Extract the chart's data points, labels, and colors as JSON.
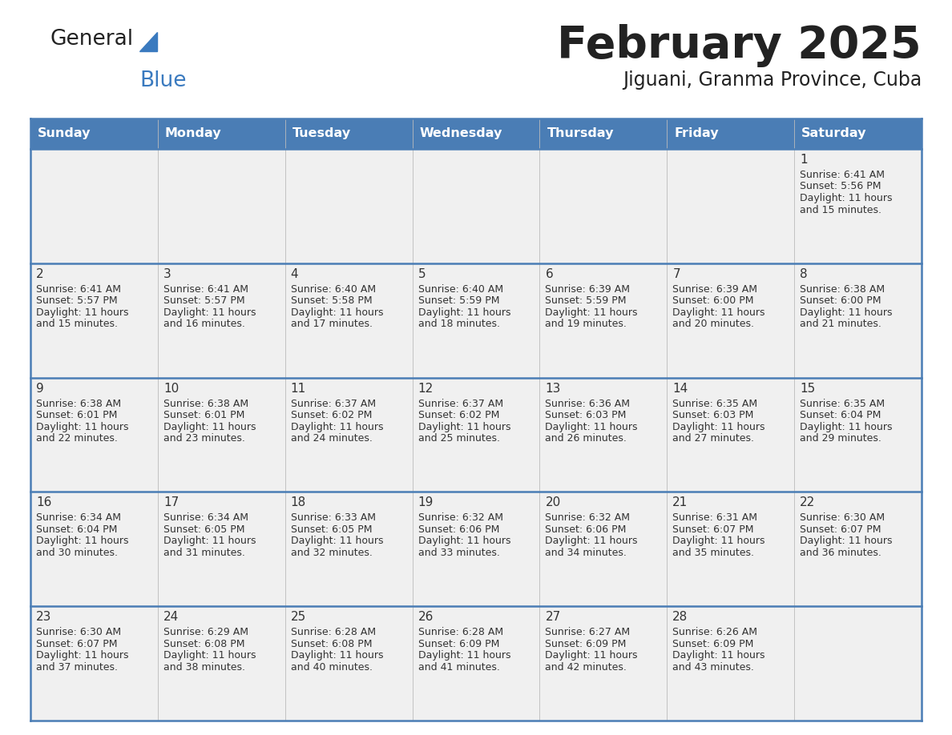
{
  "title": "February 2025",
  "subtitle": "Jiguani, Granma Province, Cuba",
  "days_of_week": [
    "Sunday",
    "Monday",
    "Tuesday",
    "Wednesday",
    "Thursday",
    "Friday",
    "Saturday"
  ],
  "header_bg": "#4A7DB5",
  "header_text": "#ffffff",
  "row_bg_light": "#f0f0f0",
  "row_bg_white": "#ffffff",
  "cell_text_color": "#333333",
  "day_num_color": "#333333",
  "border_color": "#4A7DB5",
  "logo_general_color": "#222222",
  "logo_blue_color": "#3a7abf",
  "logo_triangle_color": "#3a7abf",
  "calendar_data": [
    [
      null,
      null,
      null,
      null,
      null,
      null,
      {
        "day": "1",
        "sunrise": "6:41 AM",
        "sunset": "5:56 PM",
        "daylight_h": "11 hours",
        "daylight_m": "and 15 minutes."
      }
    ],
    [
      {
        "day": "2",
        "sunrise": "6:41 AM",
        "sunset": "5:57 PM",
        "daylight_h": "11 hours",
        "daylight_m": "and 15 minutes."
      },
      {
        "day": "3",
        "sunrise": "6:41 AM",
        "sunset": "5:57 PM",
        "daylight_h": "11 hours",
        "daylight_m": "and 16 minutes."
      },
      {
        "day": "4",
        "sunrise": "6:40 AM",
        "sunset": "5:58 PM",
        "daylight_h": "11 hours",
        "daylight_m": "and 17 minutes."
      },
      {
        "day": "5",
        "sunrise": "6:40 AM",
        "sunset": "5:59 PM",
        "daylight_h": "11 hours",
        "daylight_m": "and 18 minutes."
      },
      {
        "day": "6",
        "sunrise": "6:39 AM",
        "sunset": "5:59 PM",
        "daylight_h": "11 hours",
        "daylight_m": "and 19 minutes."
      },
      {
        "day": "7",
        "sunrise": "6:39 AM",
        "sunset": "6:00 PM",
        "daylight_h": "11 hours",
        "daylight_m": "and 20 minutes."
      },
      {
        "day": "8",
        "sunrise": "6:38 AM",
        "sunset": "6:00 PM",
        "daylight_h": "11 hours",
        "daylight_m": "and 21 minutes."
      }
    ],
    [
      {
        "day": "9",
        "sunrise": "6:38 AM",
        "sunset": "6:01 PM",
        "daylight_h": "11 hours",
        "daylight_m": "and 22 minutes."
      },
      {
        "day": "10",
        "sunrise": "6:38 AM",
        "sunset": "6:01 PM",
        "daylight_h": "11 hours",
        "daylight_m": "and 23 minutes."
      },
      {
        "day": "11",
        "sunrise": "6:37 AM",
        "sunset": "6:02 PM",
        "daylight_h": "11 hours",
        "daylight_m": "and 24 minutes."
      },
      {
        "day": "12",
        "sunrise": "6:37 AM",
        "sunset": "6:02 PM",
        "daylight_h": "11 hours",
        "daylight_m": "and 25 minutes."
      },
      {
        "day": "13",
        "sunrise": "6:36 AM",
        "sunset": "6:03 PM",
        "daylight_h": "11 hours",
        "daylight_m": "and 26 minutes."
      },
      {
        "day": "14",
        "sunrise": "6:35 AM",
        "sunset": "6:03 PM",
        "daylight_h": "11 hours",
        "daylight_m": "and 27 minutes."
      },
      {
        "day": "15",
        "sunrise": "6:35 AM",
        "sunset": "6:04 PM",
        "daylight_h": "11 hours",
        "daylight_m": "and 29 minutes."
      }
    ],
    [
      {
        "day": "16",
        "sunrise": "6:34 AM",
        "sunset": "6:04 PM",
        "daylight_h": "11 hours",
        "daylight_m": "and 30 minutes."
      },
      {
        "day": "17",
        "sunrise": "6:34 AM",
        "sunset": "6:05 PM",
        "daylight_h": "11 hours",
        "daylight_m": "and 31 minutes."
      },
      {
        "day": "18",
        "sunrise": "6:33 AM",
        "sunset": "6:05 PM",
        "daylight_h": "11 hours",
        "daylight_m": "and 32 minutes."
      },
      {
        "day": "19",
        "sunrise": "6:32 AM",
        "sunset": "6:06 PM",
        "daylight_h": "11 hours",
        "daylight_m": "and 33 minutes."
      },
      {
        "day": "20",
        "sunrise": "6:32 AM",
        "sunset": "6:06 PM",
        "daylight_h": "11 hours",
        "daylight_m": "and 34 minutes."
      },
      {
        "day": "21",
        "sunrise": "6:31 AM",
        "sunset": "6:07 PM",
        "daylight_h": "11 hours",
        "daylight_m": "and 35 minutes."
      },
      {
        "day": "22",
        "sunrise": "6:30 AM",
        "sunset": "6:07 PM",
        "daylight_h": "11 hours",
        "daylight_m": "and 36 minutes."
      }
    ],
    [
      {
        "day": "23",
        "sunrise": "6:30 AM",
        "sunset": "6:07 PM",
        "daylight_h": "11 hours",
        "daylight_m": "and 37 minutes."
      },
      {
        "day": "24",
        "sunrise": "6:29 AM",
        "sunset": "6:08 PM",
        "daylight_h": "11 hours",
        "daylight_m": "and 38 minutes."
      },
      {
        "day": "25",
        "sunrise": "6:28 AM",
        "sunset": "6:08 PM",
        "daylight_h": "11 hours",
        "daylight_m": "and 40 minutes."
      },
      {
        "day": "26",
        "sunrise": "6:28 AM",
        "sunset": "6:09 PM",
        "daylight_h": "11 hours",
        "daylight_m": "and 41 minutes."
      },
      {
        "day": "27",
        "sunrise": "6:27 AM",
        "sunset": "6:09 PM",
        "daylight_h": "11 hours",
        "daylight_m": "and 42 minutes."
      },
      {
        "day": "28",
        "sunrise": "6:26 AM",
        "sunset": "6:09 PM",
        "daylight_h": "11 hours",
        "daylight_m": "and 43 minutes."
      },
      null
    ]
  ]
}
